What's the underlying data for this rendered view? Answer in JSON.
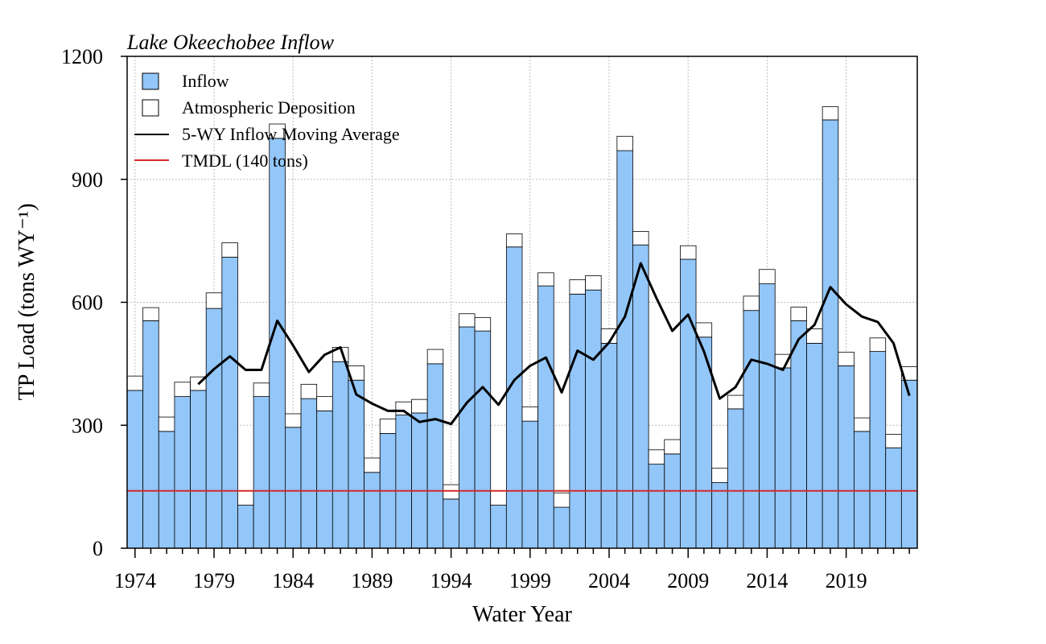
{
  "chart_data": {
    "type": "bar",
    "title": "Lake Okeechobee Inflow",
    "xlabel": "Water Year",
    "ylabel": "TP Load (tons WY⁻¹)",
    "ylim": [
      0,
      1200
    ],
    "yticks": [
      0,
      300,
      600,
      900,
      1200
    ],
    "ytick_labels": [
      "0",
      "300",
      "600",
      "900",
      "1200"
    ],
    "xrange": [
      1973.5,
      2023.5
    ],
    "xticks": [
      1974,
      1979,
      1984,
      1989,
      1994,
      1999,
      2004,
      2009,
      2014,
      2019
    ],
    "xtick_labels": [
      "1974",
      "1979",
      "1984",
      "1989",
      "1994",
      "1999",
      "2004",
      "2009",
      "2014",
      "2019"
    ],
    "grid": true,
    "legend_position": "top-left",
    "colors": {
      "inflow": "#93c6f9",
      "deposition": "#ffffff",
      "moving_average": "#000000",
      "tmdl": "#d42a2a"
    },
    "legend": {
      "inflow": "Inflow",
      "deposition": "Atmospheric Deposition",
      "moving_average": "5-WY Inflow Moving Average",
      "tmdl": "TMDL (140 tons)"
    },
    "years": [
      1974,
      1975,
      1976,
      1977,
      1978,
      1979,
      1980,
      1981,
      1982,
      1983,
      1984,
      1985,
      1986,
      1987,
      1988,
      1989,
      1990,
      1991,
      1992,
      1993,
      1994,
      1995,
      1996,
      1997,
      1998,
      1999,
      2000,
      2001,
      2002,
      2003,
      2004,
      2005,
      2006,
      2007,
      2008,
      2009,
      2010,
      2011,
      2012,
      2013,
      2014,
      2015,
      2016,
      2017,
      2018,
      2019,
      2020,
      2021,
      2022,
      2023
    ],
    "series": [
      {
        "name": "Inflow",
        "values": [
          385,
          555,
          285,
          370,
          385,
          585,
          710,
          105,
          370,
          1000,
          295,
          365,
          335,
          455,
          410,
          185,
          280,
          325,
          330,
          450,
          120,
          540,
          530,
          105,
          735,
          310,
          640,
          100,
          620,
          630,
          500,
          970,
          740,
          205,
          230,
          705,
          515,
          160,
          340,
          580,
          645,
          440,
          555,
          500,
          1045,
          445,
          285,
          480,
          245,
          410
        ]
      },
      {
        "name": "Atmospheric Deposition",
        "values": [
          35,
          32,
          35,
          35,
          33,
          38,
          35,
          35,
          33,
          35,
          33,
          35,
          35,
          35,
          35,
          35,
          35,
          32,
          33,
          35,
          35,
          32,
          33,
          35,
          32,
          35,
          32,
          35,
          35,
          35,
          35,
          35,
          33,
          35,
          35,
          33,
          35,
          35,
          33,
          35,
          35,
          33,
          33,
          35,
          32,
          33,
          33,
          33,
          33,
          33
        ]
      },
      {
        "name": "5-WY Inflow Moving Average",
        "x": [
          1978,
          1979,
          1980,
          1981,
          1982,
          1983,
          1984,
          1985,
          1986,
          1987,
          1988,
          1989,
          1990,
          1991,
          1992,
          1993,
          1994,
          1995,
          1996,
          1997,
          1998,
          1999,
          2000,
          2001,
          2002,
          2003,
          2004,
          2005,
          2006,
          2007,
          2008,
          2009,
          2010,
          2011,
          2012,
          2013,
          2014,
          2015,
          2016,
          2017,
          2018,
          2019,
          2020,
          2021,
          2022,
          2023
        ],
        "values": [
          400,
          437,
          468,
          435,
          435,
          555,
          495,
          430,
          472,
          490,
          375,
          353,
          335,
          335,
          308,
          315,
          303,
          355,
          393,
          350,
          410,
          445,
          465,
          380,
          482,
          460,
          502,
          565,
          695,
          610,
          530,
          570,
          480,
          365,
          393,
          460,
          450,
          435,
          510,
          545,
          637,
          595,
          565,
          552,
          500,
          372
        ]
      },
      {
        "name": "TMDL (140 tons)",
        "value": 140
      }
    ]
  }
}
